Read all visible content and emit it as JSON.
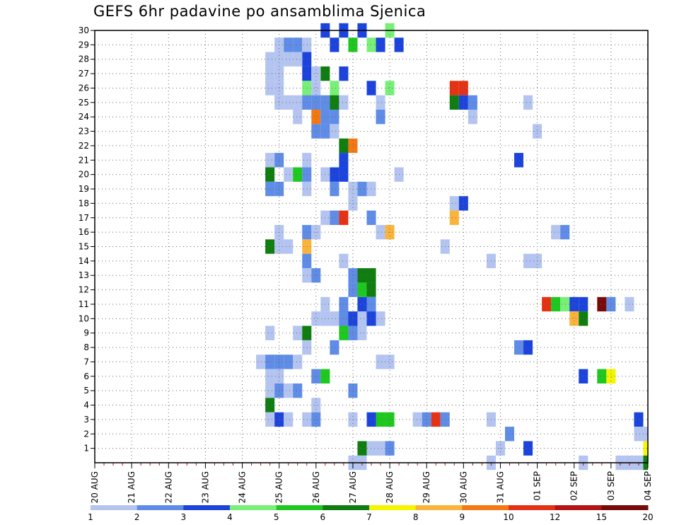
{
  "chart_data": {
    "type": "heatmap",
    "title": "GEFS 6hr padavine po ansamblima Sjenica",
    "x_tick_labels": [
      "20 AUG",
      "21 AUG",
      "22 AUG",
      "23 AUG",
      "24 AUG",
      "25 AUG",
      "26 AUG",
      "27 AUG",
      "28 AUG",
      "29 AUG",
      "30 AUG",
      "31 AUG",
      "01 SEP",
      "02 SEP",
      "03 SEP",
      "04 SEP"
    ],
    "y_tick_labels": [
      "1",
      "2",
      "3",
      "4",
      "5",
      "6",
      "7",
      "8",
      "9",
      "10",
      "11",
      "12",
      "13",
      "14",
      "15",
      "16",
      "17",
      "18",
      "19",
      "20",
      "21",
      "22",
      "23",
      "24",
      "25",
      "26",
      "27",
      "28",
      "29",
      "30"
    ],
    "x_unit": "6-hour step from 20 AUG 00Z (4 steps per day)",
    "x_range": [
      0,
      60
    ],
    "y_range": [
      0,
      30
    ],
    "grid": true,
    "legend": {
      "placement": "bottom",
      "labels": [
        "1",
        "2",
        "3",
        "4",
        "5",
        "6",
        "7",
        "8",
        "9",
        "10",
        "12",
        "15",
        "20"
      ],
      "colors": [
        "#b4c4f0",
        "#5f8ce6",
        "#1c44dc",
        "#78f078",
        "#1ec81e",
        "#0f7d0f",
        "#f5f500",
        "#fab43c",
        "#f57814",
        "#e63214",
        "#b41414",
        "#780a0a"
      ]
    },
    "cells": [
      [
        20,
        29,
        1
      ],
      [
        21,
        29,
        2
      ],
      [
        22,
        29,
        2
      ],
      [
        23,
        29,
        1
      ],
      [
        25,
        30,
        3
      ],
      [
        26,
        29,
        3
      ],
      [
        27,
        30,
        3
      ],
      [
        28,
        29,
        5
      ],
      [
        29,
        30,
        3
      ],
      [
        30,
        29,
        4
      ],
      [
        31,
        29,
        3
      ],
      [
        32,
        30,
        4
      ],
      [
        33,
        29,
        3
      ],
      [
        19,
        28,
        1
      ],
      [
        19,
        27,
        1
      ],
      [
        19,
        26,
        1
      ],
      [
        20,
        28,
        1
      ],
      [
        20,
        27,
        1
      ],
      [
        20,
        26,
        1
      ],
      [
        21,
        28,
        1
      ],
      [
        23,
        28,
        3
      ],
      [
        23,
        27,
        3
      ],
      [
        22,
        28,
        1
      ],
      [
        23,
        26,
        4
      ],
      [
        24,
        26,
        1
      ],
      [
        25,
        27,
        6
      ],
      [
        26,
        26,
        4
      ],
      [
        27,
        27,
        3
      ],
      [
        24,
        27,
        1
      ],
      [
        22,
        25,
        1
      ],
      [
        22,
        24,
        1
      ],
      [
        23,
        25,
        1
      ],
      [
        30,
        26,
        3
      ],
      [
        31,
        25,
        1
      ],
      [
        32,
        26,
        4
      ],
      [
        31,
        24,
        2
      ],
      [
        39,
        26,
        10
      ],
      [
        40,
        26,
        10
      ],
      [
        39,
        25,
        6
      ],
      [
        20,
        25,
        1
      ],
      [
        21,
        25,
        1
      ],
      [
        23,
        25,
        2
      ],
      [
        24,
        25,
        2
      ],
      [
        25,
        25,
        2
      ],
      [
        26,
        25,
        6
      ],
      [
        27,
        25,
        1
      ],
      [
        40,
        25,
        3
      ],
      [
        41,
        25,
        2
      ],
      [
        47,
        25,
        1
      ],
      [
        24,
        24,
        9
      ],
      [
        25,
        24,
        2
      ],
      [
        26,
        24,
        2
      ],
      [
        41,
        24,
        1
      ],
      [
        48,
        23,
        1
      ],
      [
        24,
        23,
        2
      ],
      [
        25,
        23,
        2
      ],
      [
        26,
        23,
        1
      ],
      [
        27,
        22,
        6
      ],
      [
        28,
        22,
        9
      ],
      [
        19,
        21,
        1
      ],
      [
        20,
        21,
        2
      ],
      [
        23,
        21,
        1
      ],
      [
        27,
        21,
        3
      ],
      [
        46,
        21,
        3
      ],
      [
        19,
        20,
        6
      ],
      [
        21,
        20,
        1
      ],
      [
        22,
        20,
        5
      ],
      [
        23,
        20,
        2
      ],
      [
        25,
        20,
        1
      ],
      [
        26,
        20,
        3
      ],
      [
        27,
        20,
        3
      ],
      [
        33,
        20,
        1
      ],
      [
        19,
        19,
        2
      ],
      [
        20,
        19,
        2
      ],
      [
        23,
        19,
        1
      ],
      [
        26,
        19,
        2
      ],
      [
        28,
        19,
        1
      ],
      [
        29,
        19,
        2
      ],
      [
        30,
        19,
        1
      ],
      [
        28,
        18,
        1
      ],
      [
        39,
        18,
        1
      ],
      [
        40,
        18,
        3
      ],
      [
        25,
        17,
        1
      ],
      [
        26,
        17,
        2
      ],
      [
        27,
        17,
        10
      ],
      [
        30,
        17,
        2
      ],
      [
        39,
        17,
        8
      ],
      [
        20,
        16,
        1
      ],
      [
        23,
        16,
        2
      ],
      [
        24,
        16,
        1
      ],
      [
        31,
        16,
        15
      ],
      [
        32,
        16,
        8
      ],
      [
        50,
        16,
        1
      ],
      [
        51,
        16,
        2
      ],
      [
        19,
        15,
        6
      ],
      [
        20,
        15,
        1
      ],
      [
        21,
        15,
        1
      ],
      [
        23,
        15,
        8
      ],
      [
        38,
        15,
        1
      ],
      [
        23,
        14,
        2
      ],
      [
        27,
        14,
        1
      ],
      [
        43,
        14,
        1
      ],
      [
        47,
        14,
        1
      ],
      [
        48,
        14,
        1
      ],
      [
        23,
        13,
        1
      ],
      [
        24,
        13,
        2
      ],
      [
        28,
        13,
        2
      ],
      [
        29,
        13,
        6
      ],
      [
        30,
        13,
        6
      ],
      [
        28,
        12,
        2
      ],
      [
        29,
        12,
        5
      ],
      [
        30,
        12,
        6
      ],
      [
        25,
        11,
        1
      ],
      [
        27,
        11,
        2
      ],
      [
        29,
        11,
        1
      ],
      [
        30,
        11,
        1
      ],
      [
        27,
        10,
        6
      ],
      [
        29,
        10,
        1
      ],
      [
        29,
        9,
        1
      ],
      [
        30,
        10,
        1
      ],
      [
        30,
        11,
        2
      ],
      [
        29,
        11,
        3
      ],
      [
        49,
        11,
        10
      ],
      [
        50,
        11,
        5
      ],
      [
        51,
        11,
        4
      ],
      [
        52,
        11,
        3
      ],
      [
        53,
        11,
        3
      ],
      [
        55,
        11,
        12
      ],
      [
        56,
        11,
        2
      ],
      [
        58,
        11,
        1
      ],
      [
        24,
        10,
        1
      ],
      [
        25,
        10,
        1
      ],
      [
        26,
        10,
        1
      ],
      [
        27,
        10,
        2
      ],
      [
        28,
        10,
        3
      ],
      [
        30,
        10,
        3
      ],
      [
        31,
        10,
        1
      ],
      [
        52,
        10,
        8
      ],
      [
        53,
        10,
        6
      ],
      [
        19,
        9,
        1
      ],
      [
        22,
        9,
        1
      ],
      [
        23,
        9,
        6
      ],
      [
        27,
        9,
        5
      ],
      [
        28,
        9,
        2
      ],
      [
        23,
        8,
        1
      ],
      [
        26,
        8,
        2
      ],
      [
        46,
        8,
        2
      ],
      [
        47,
        8,
        3
      ],
      [
        18,
        7,
        1
      ],
      [
        19,
        7,
        2
      ],
      [
        20,
        7,
        2
      ],
      [
        21,
        7,
        2
      ],
      [
        22,
        7,
        1
      ],
      [
        31,
        7,
        1
      ],
      [
        32,
        7,
        1
      ],
      [
        19,
        6,
        1
      ],
      [
        20,
        6,
        1
      ],
      [
        24,
        6,
        2
      ],
      [
        25,
        6,
        5
      ],
      [
        53,
        6,
        3
      ],
      [
        55,
        6,
        5
      ],
      [
        56,
        6,
        7
      ],
      [
        19,
        5,
        1
      ],
      [
        20,
        5,
        2
      ],
      [
        21,
        5,
        1
      ],
      [
        22,
        5,
        2
      ],
      [
        28,
        5,
        2
      ],
      [
        19,
        4,
        6
      ],
      [
        24,
        4,
        1
      ],
      [
        19,
        3,
        1
      ],
      [
        20,
        3,
        3
      ],
      [
        21,
        3,
        1
      ],
      [
        23,
        3,
        1
      ],
      [
        24,
        3,
        2
      ],
      [
        28,
        3,
        1
      ],
      [
        30,
        3,
        3
      ],
      [
        31,
        3,
        5
      ],
      [
        32,
        3,
        5
      ],
      [
        35,
        3,
        1
      ],
      [
        36,
        3,
        2
      ],
      [
        37,
        3,
        10
      ],
      [
        38,
        3,
        2
      ],
      [
        43,
        3,
        1
      ],
      [
        59,
        3,
        3
      ],
      [
        45,
        2,
        2
      ],
      [
        59,
        2,
        1
      ],
      [
        60,
        2,
        1
      ],
      [
        29,
        1,
        6
      ],
      [
        30,
        1,
        1
      ],
      [
        31,
        1,
        1
      ],
      [
        32,
        1,
        2
      ],
      [
        44,
        1,
        1
      ],
      [
        47,
        1,
        3
      ],
      [
        60,
        1,
        7
      ],
      [
        28,
        0,
        1
      ],
      [
        29,
        0,
        1
      ],
      [
        43,
        0,
        1
      ],
      [
        53,
        0,
        1
      ],
      [
        57,
        0,
        1
      ],
      [
        58,
        0,
        1
      ],
      [
        59,
        0,
        1
      ],
      [
        60,
        0,
        6
      ]
    ]
  }
}
